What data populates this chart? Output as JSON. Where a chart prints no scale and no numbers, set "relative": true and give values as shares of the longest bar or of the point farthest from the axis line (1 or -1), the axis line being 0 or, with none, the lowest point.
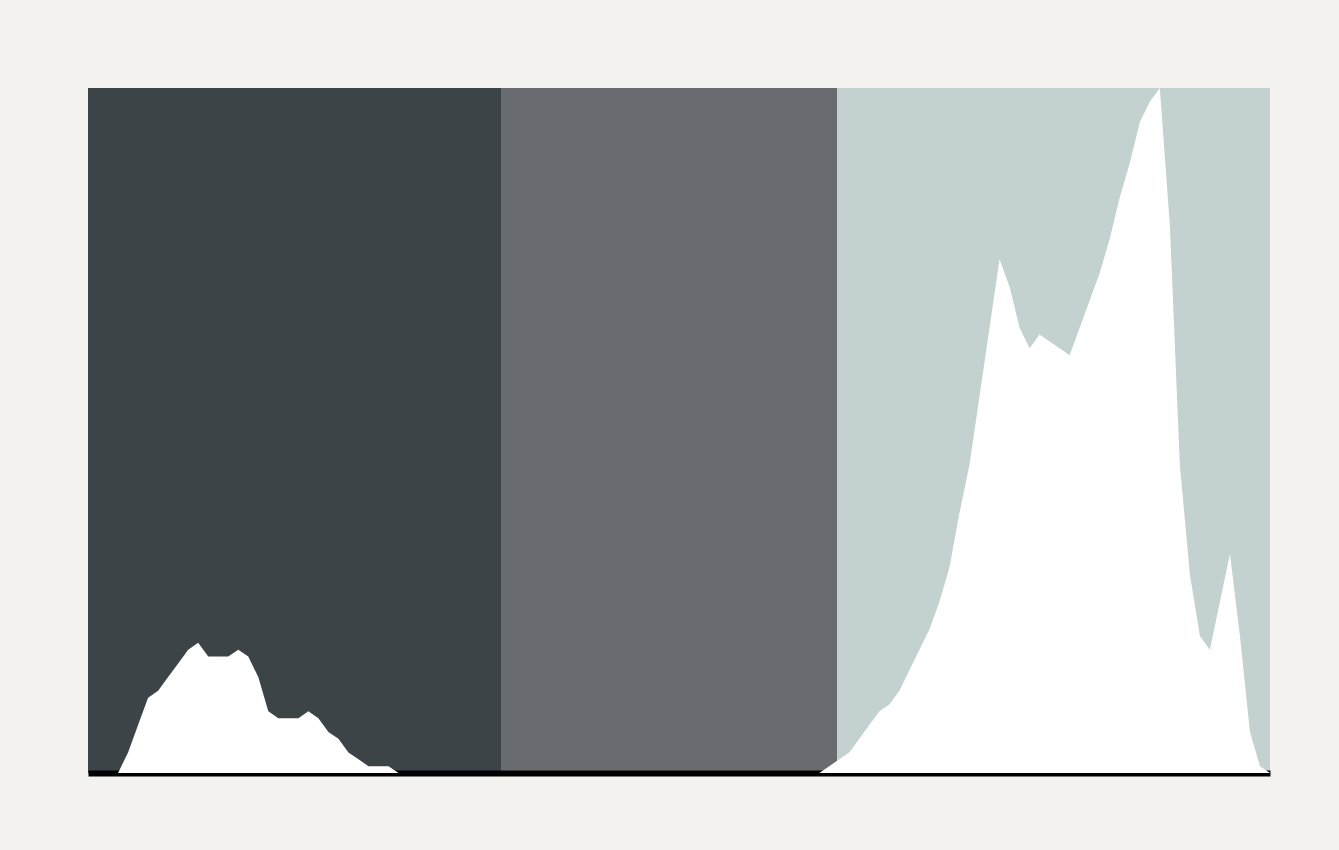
{
  "chart_data": {
    "type": "area",
    "relative": true,
    "categories": [
      null,
      null,
      null,
      null,
      null,
      null,
      null,
      null,
      null,
      null,
      null,
      null,
      null,
      null,
      null,
      null,
      null,
      null,
      null,
      null,
      null,
      null,
      null,
      null,
      null,
      null,
      null,
      null,
      null,
      null,
      null,
      null,
      null,
      null,
      null,
      null,
      null,
      null,
      null,
      null,
      null,
      null,
      null,
      null,
      null,
      null,
      null,
      null,
      null,
      null,
      null,
      null,
      null,
      null,
      null,
      null,
      null,
      null,
      null,
      null,
      null,
      null,
      null,
      null,
      null,
      null,
      null,
      null,
      null,
      null,
      null,
      null,
      null,
      null,
      null,
      null,
      null,
      null,
      null,
      null,
      null,
      null,
      null,
      null,
      null,
      null,
      null,
      null,
      null,
      null,
      null,
      null,
      null,
      null,
      null,
      null,
      null,
      null,
      null,
      null,
      null,
      null,
      null,
      null,
      null,
      null,
      null,
      null,
      null,
      null,
      null,
      null,
      null,
      null,
      null,
      null,
      null,
      null,
      null
    ],
    "series": [
      {
        "color": "#ffffff",
        "values": [
          0,
          0,
          0,
          0,
          0.03,
          0.07,
          0.11,
          0.12,
          0.14,
          0.16,
          0.18,
          0.19,
          0.17,
          0.17,
          0.17,
          0.18,
          0.17,
          0.14,
          0.09,
          0.08,
          0.08,
          0.08,
          0.09,
          0.08,
          0.06,
          0.05,
          0.03,
          0.02,
          0.01,
          0.01,
          0.01,
          0,
          0,
          0,
          0,
          0,
          0,
          0,
          0,
          0,
          0,
          0,
          0,
          0,
          0,
          0,
          0,
          0,
          0,
          0,
          0,
          0,
          0,
          0,
          0,
          0,
          0,
          0,
          0,
          0,
          0,
          0,
          0,
          0,
          0,
          0,
          0,
          0,
          0,
          0,
          0,
          0,
          0,
          0,
          0.01,
          0.02,
          0.03,
          0.05,
          0.07,
          0.09,
          0.1,
          0.12,
          0.15,
          0.18,
          0.21,
          0.25,
          0.3,
          0.38,
          0.45,
          0.55,
          0.65,
          0.75,
          0.71,
          0.65,
          0.62,
          0.64,
          0.63,
          0.62,
          0.61,
          0.65,
          0.69,
          0.73,
          0.78,
          0.84,
          0.89,
          0.95,
          0.98,
          1,
          0.8,
          0.45,
          0.29,
          0.2,
          0.18,
          0.25,
          0.32,
          0.2,
          0.06,
          0.01,
          0
        ]
      }
    ]
  }
}
